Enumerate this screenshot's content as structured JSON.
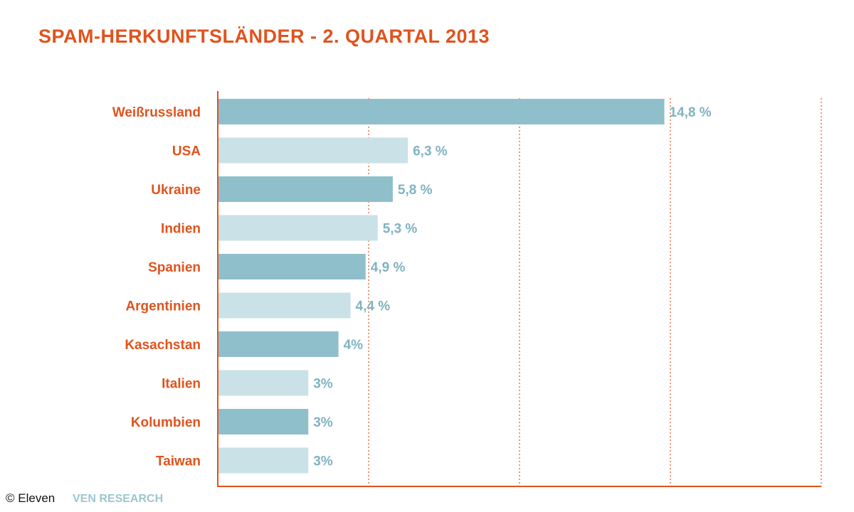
{
  "colors": {
    "accent": "#e0531e",
    "bar_dark": "#8fbfcb",
    "bar_light": "#c9e1e7",
    "value_text": "#7fb3c2",
    "credit_text": "#111111",
    "research_text": "#9cc6d0"
  },
  "credit": {
    "text": "© Eleven",
    "research": "VEN RESEARCH"
  },
  "chart_data": {
    "type": "bar",
    "orientation": "horizontal",
    "title": "SPAM-HERKUNFTSLÄNDER - 2. QUARTAL 2013",
    "categories": [
      "Weißrussland",
      "USA",
      "Ukraine",
      "Indien",
      "Spanien",
      "Argentinien",
      "Kasachstan",
      "Italien",
      "Kolumbien",
      "Taiwan"
    ],
    "values": [
      14.8,
      6.3,
      5.8,
      5.3,
      4.9,
      4.4,
      4,
      3,
      3,
      3
    ],
    "value_labels": [
      "14,8 %",
      "6,3 %",
      "5,8 %",
      "5,3 %",
      "4,9 %",
      "4,4 %",
      "4%",
      "3%",
      "3%",
      "3%"
    ],
    "xlim": [
      0,
      20
    ],
    "gridlines": [
      5,
      10,
      15,
      20
    ],
    "grid": true,
    "grid_style": "dotted vertical"
  }
}
